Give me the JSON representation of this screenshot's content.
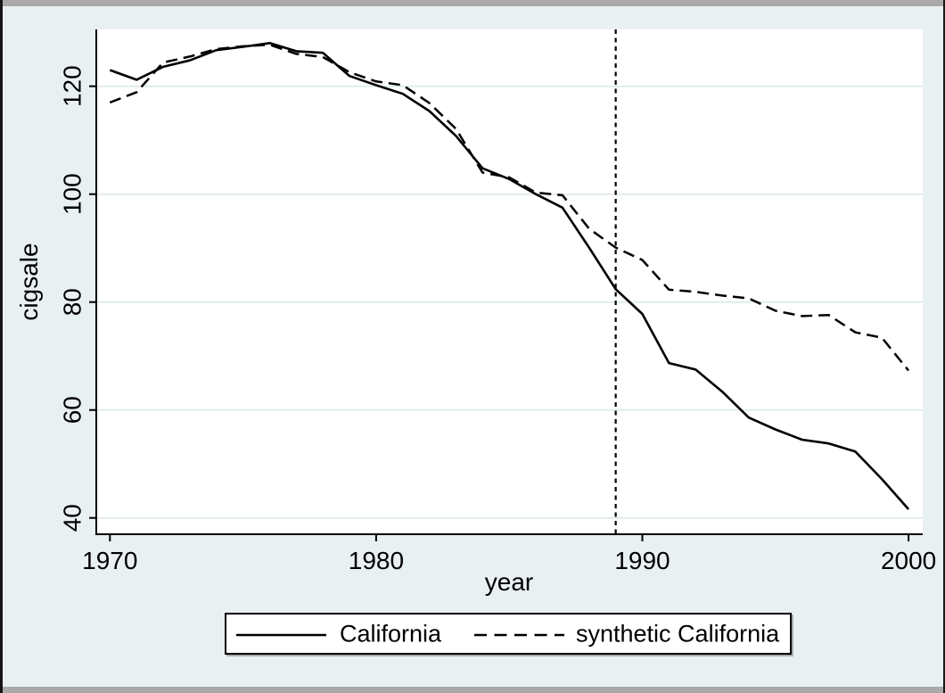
{
  "figure": {
    "background_color": "#e9f0f2",
    "plot_background_color": "#ffffff",
    "gridline_color": "#e2ebed",
    "axis_color": "#000000",
    "series_color": "#000000",
    "frame_bar_color": "#a9a9a9"
  },
  "chart_data": {
    "type": "line",
    "title": "",
    "xlabel": "year",
    "ylabel": "cigsale",
    "x": [
      1970,
      1971,
      1972,
      1973,
      1974,
      1975,
      1976,
      1977,
      1978,
      1979,
      1980,
      1981,
      1982,
      1983,
      1984,
      1985,
      1986,
      1987,
      1988,
      1989,
      1990,
      1991,
      1992,
      1993,
      1994,
      1995,
      1996,
      1997,
      1998,
      1999,
      2000
    ],
    "series": [
      {
        "name": "California",
        "style": "solid",
        "values": [
          123.0,
          121.2,
          123.6,
          124.8,
          126.7,
          127.3,
          128.0,
          126.5,
          126.2,
          121.9,
          120.2,
          118.6,
          115.4,
          110.8,
          104.8,
          102.8,
          100.0,
          97.5,
          90.1,
          82.4,
          77.8,
          68.7,
          67.5,
          63.4,
          58.6,
          56.4,
          54.5,
          53.8,
          52.3,
          47.2,
          41.6
        ]
      },
      {
        "name": "synthetic California",
        "style": "dashed",
        "values": [
          117.0,
          118.9,
          124.4,
          125.5,
          126.9,
          127.4,
          127.7,
          126.0,
          125.4,
          122.6,
          120.9,
          120.2,
          116.9,
          112.1,
          104.0,
          103.1,
          100.3,
          99.8,
          93.6,
          90.1,
          87.8,
          82.3,
          81.9,
          81.2,
          80.7,
          78.4,
          77.4,
          77.6,
          74.4,
          73.4,
          67.3
        ]
      }
    ],
    "x_ticks": [
      1970,
      1980,
      1990,
      2000
    ],
    "y_ticks": [
      40,
      60,
      80,
      100,
      120
    ],
    "xlim": [
      1969.5,
      2000.5
    ],
    "ylim": [
      37.0,
      130.5
    ],
    "vertical_reference_line_x": 1989,
    "grid": "horizontal",
    "legend_position": "bottom"
  },
  "legend": {
    "items": [
      {
        "label": "California",
        "line_style": "solid"
      },
      {
        "label": "synthetic California",
        "line_style": "dashed"
      }
    ]
  }
}
